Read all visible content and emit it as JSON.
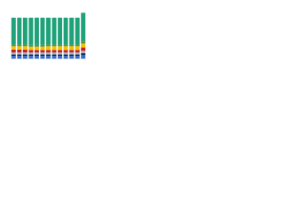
{
  "chart_data": {
    "type": "stacked_bar",
    "categories": [
      null,
      null,
      null,
      null,
      null,
      null,
      null,
      null,
      null,
      null,
      null,
      null,
      null
    ],
    "ylim": [
      0,
      115
    ],
    "series": [
      {
        "color": "#2f6fd6",
        "values": [
          6,
          6,
          6,
          6,
          6,
          6,
          6,
          6,
          6,
          6,
          6,
          6,
          8
        ]
      },
      {
        "color": "#1c2b5a",
        "values": [
          4,
          4,
          4,
          4,
          4,
          4,
          4,
          4,
          4,
          4,
          4,
          4,
          5
        ]
      },
      {
        "color": "#a9b4c2",
        "values": [
          5,
          5,
          5,
          5,
          5,
          5,
          5,
          5,
          5,
          5,
          5,
          5,
          6
        ]
      },
      {
        "color": "#c8202a",
        "values": [
          7,
          7,
          7,
          6,
          6,
          6,
          6,
          6,
          6,
          6,
          6,
          6,
          8
        ]
      },
      {
        "color": "#f2c200",
        "values": [
          8,
          8,
          8,
          8,
          8,
          8,
          9,
          9,
          9,
          9,
          9,
          9,
          10
        ]
      },
      {
        "color": "#5a8f3a",
        "values": [
          4,
          4,
          4,
          4,
          4,
          4,
          4,
          4,
          4,
          4,
          4,
          4,
          6
        ]
      },
      {
        "color": "#1fa27a",
        "values": [
          66,
          66,
          66,
          67,
          67,
          67,
          66,
          66,
          66,
          66,
          66,
          66,
          69
        ]
      }
    ]
  }
}
